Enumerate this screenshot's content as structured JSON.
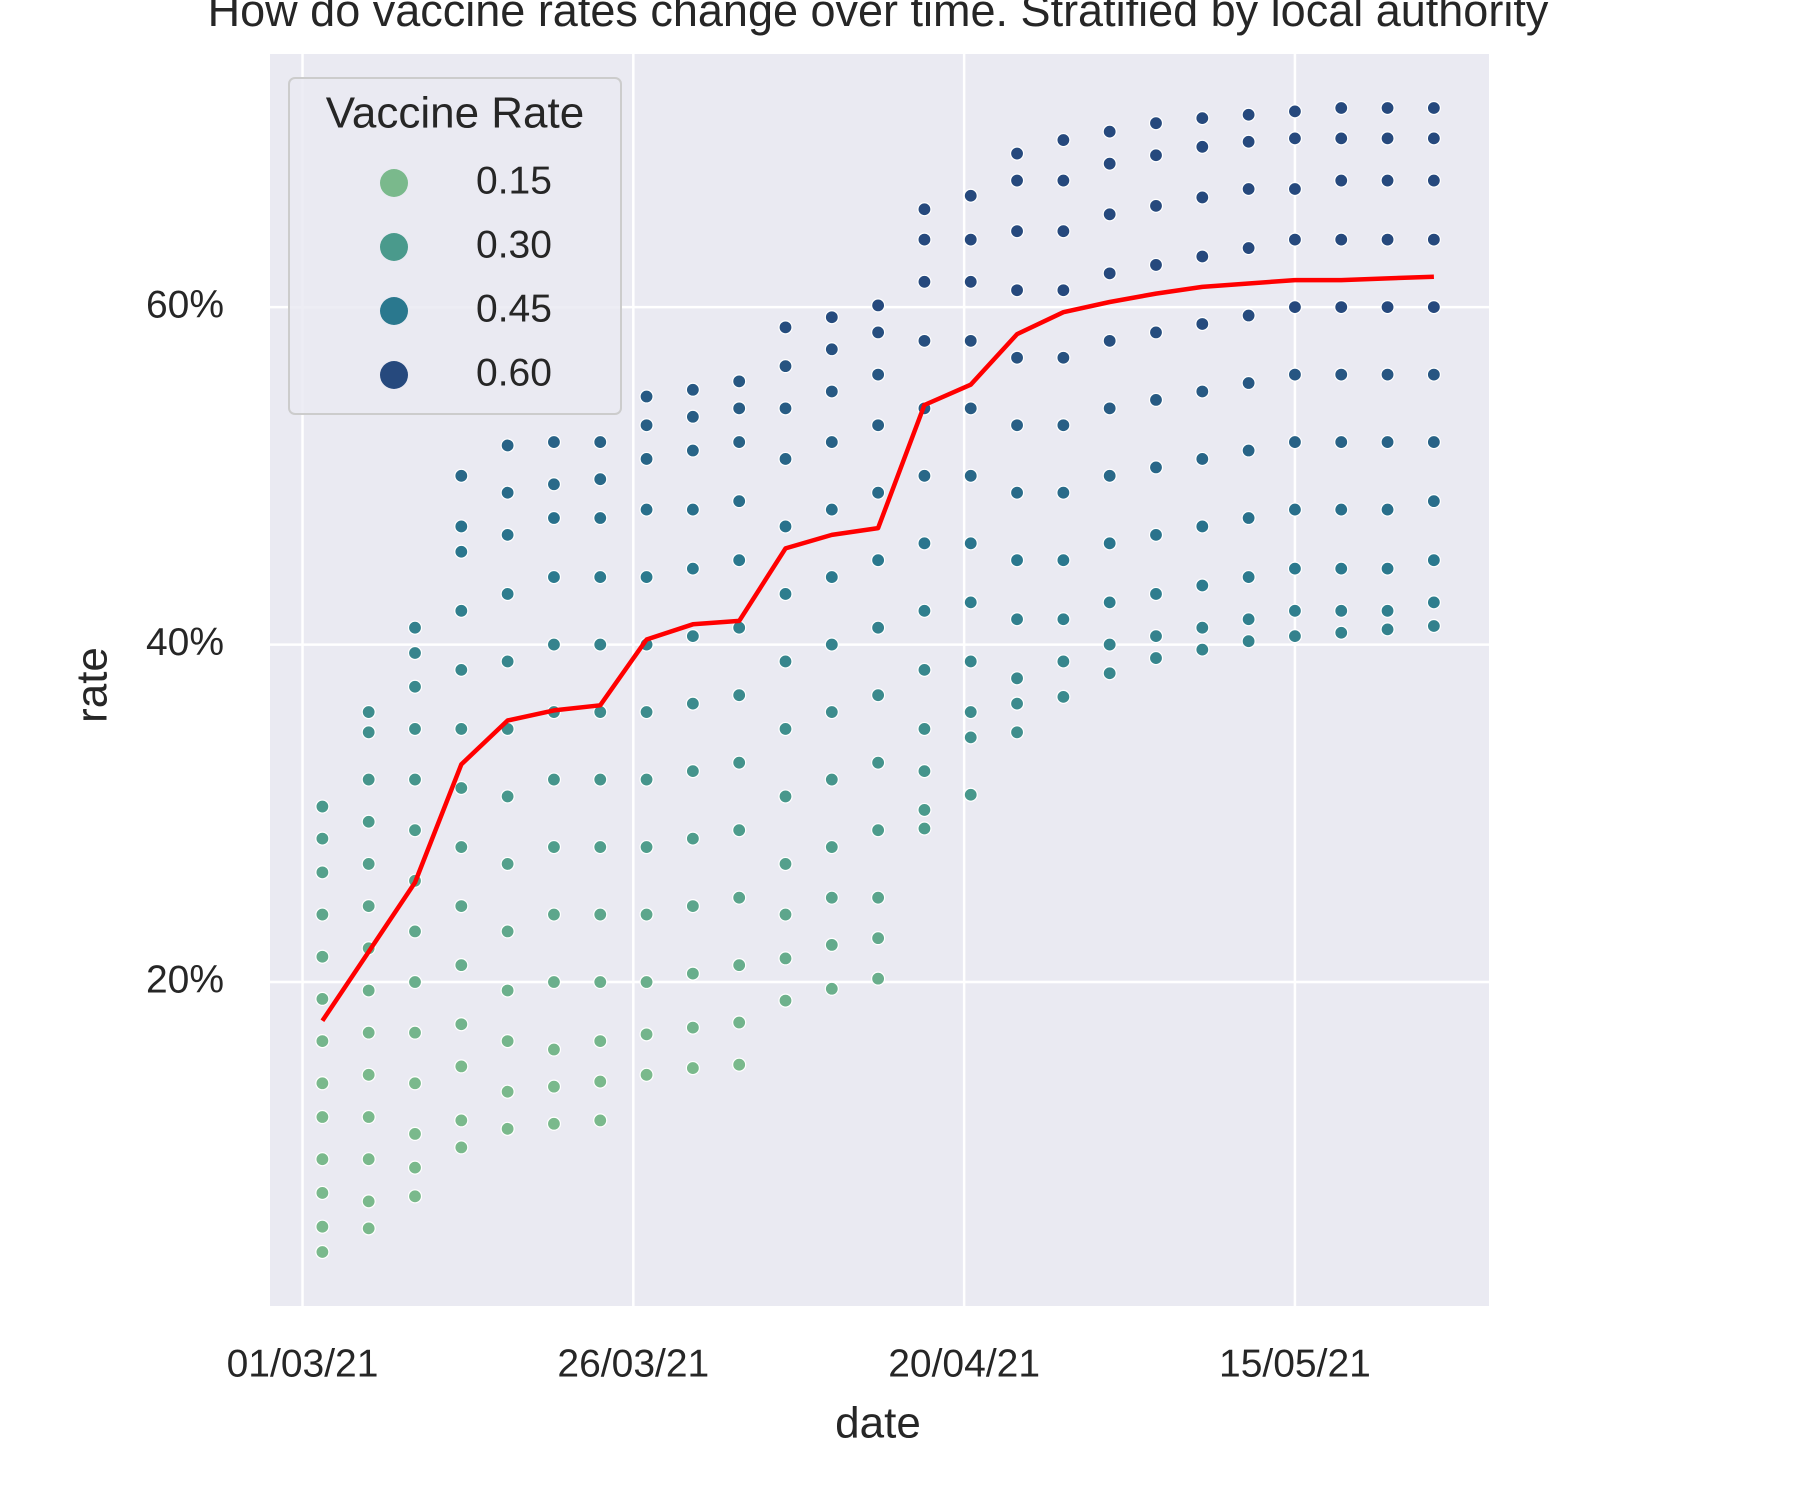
{
  "chart_data": {
    "type": "scatter",
    "title": "How do vaccine rates change over time. Stratified by local authority",
    "x_label": "date",
    "y_label": "rate",
    "x": [
      "2021-03-02T12:00",
      "2021-03-06T00:00",
      "2021-03-09T12:00",
      "2021-03-13T00:00",
      "2021-03-16T12:00",
      "2021-03-20T00:00",
      "2021-03-23T12:00",
      "2021-03-27T00:00",
      "2021-03-30T12:00",
      "2021-04-03T00:00",
      "2021-04-06T12:00",
      "2021-04-10T00:00",
      "2021-04-13T12:00",
      "2021-04-17T00:00",
      "2021-04-20T12:00",
      "2021-04-24T00:00",
      "2021-04-27T12:00",
      "2021-05-01T00:00",
      "2021-05-04T12:00",
      "2021-05-08T00:00",
      "2021-05-11T12:00",
      "2021-05-15T00:00",
      "2021-05-18T12:00",
      "2021-05-22T00:00",
      "2021-05-25T12:00"
    ],
    "points": [
      [
        4.0,
        5.5,
        7.5,
        9.5,
        12,
        14,
        16.5,
        19,
        21.5,
        24,
        26.5,
        28.5,
        30.4
      ],
      [
        5.4,
        7,
        9.5,
        12,
        14.5,
        17,
        19.5,
        22,
        24.5,
        27,
        29.5,
        32,
        34.8,
        36.0
      ],
      [
        7.3,
        9,
        11,
        14,
        17,
        20,
        23,
        26,
        29,
        32,
        35,
        37.5,
        39.5,
        41.0
      ],
      [
        10.2,
        11.8,
        15,
        17.5,
        21,
        24.5,
        28,
        31.5,
        35,
        38.5,
        42,
        45.5,
        47,
        50.0
      ],
      [
        11.3,
        13.5,
        16.5,
        19.5,
        23,
        27,
        31,
        35,
        39,
        43,
        46.5,
        49,
        51.8
      ],
      [
        11.6,
        13.8,
        16,
        20,
        24,
        28,
        32,
        36,
        40,
        44,
        47.5,
        49.5,
        52.0
      ],
      [
        11.8,
        14.1,
        16.5,
        20,
        24,
        28,
        32,
        36,
        40,
        44,
        47.5,
        49.8,
        52.0
      ],
      [
        14.5,
        16.9,
        20,
        24,
        28,
        32,
        36,
        40,
        44,
        48,
        51,
        53,
        54.7
      ],
      [
        14.9,
        17.3,
        20.5,
        24.5,
        28.5,
        32.5,
        36.5,
        40.5,
        44.5,
        48,
        51.5,
        53.5,
        55.1
      ],
      [
        15.1,
        17.6,
        21,
        25,
        29,
        33,
        37,
        41,
        45,
        48.5,
        52,
        54,
        55.6
      ],
      [
        18.9,
        21.4,
        24,
        27,
        31,
        35,
        39,
        43,
        47,
        51,
        54,
        56.5,
        58.8
      ],
      [
        19.6,
        22.2,
        25,
        28,
        32,
        36,
        40,
        44,
        48,
        52,
        55,
        57.5,
        59.4
      ],
      [
        20.2,
        22.6,
        25,
        29,
        33,
        37,
        41,
        45,
        49,
        53,
        56,
        58.5,
        60.1
      ],
      [
        29.1,
        30.2,
        32.5,
        35,
        38.5,
        42,
        46,
        50,
        54,
        58,
        61.5,
        64,
        65.8
      ],
      [
        31.1,
        34.5,
        36,
        39,
        42.5,
        46,
        50,
        54,
        58,
        61.5,
        64,
        66.6
      ],
      [
        34.8,
        36.5,
        38,
        41.5,
        45,
        49,
        53,
        57,
        61,
        64.5,
        67.5,
        69.1
      ],
      [
        36.9,
        39,
        41.5,
        45,
        49,
        53,
        57,
        61,
        64.5,
        67.5,
        69.9
      ],
      [
        38.3,
        40,
        42.5,
        46,
        50,
        54,
        58,
        62,
        65.5,
        68.5,
        70.4
      ],
      [
        39.2,
        40.5,
        43,
        46.5,
        50.5,
        54.5,
        58.5,
        62.5,
        66,
        69,
        70.9
      ],
      [
        39.7,
        41,
        43.5,
        47,
        51,
        55,
        59,
        63,
        66.5,
        69.5,
        71.2
      ],
      [
        40.2,
        41.5,
        44,
        47.5,
        51.5,
        55.5,
        59.5,
        63.5,
        67,
        69.8,
        71.4
      ],
      [
        40.5,
        42,
        44.5,
        48,
        52,
        56,
        60,
        64,
        67,
        70,
        71.6
      ],
      [
        40.7,
        42,
        44.5,
        48,
        52,
        56,
        60,
        64,
        67.5,
        70,
        71.8
      ],
      [
        40.9,
        42,
        44.5,
        48,
        52,
        56,
        60,
        64,
        67.5,
        70,
        71.8
      ],
      [
        41.1,
        42.5,
        45,
        48.5,
        52,
        56,
        60,
        64,
        67.5,
        70,
        71.8
      ]
    ],
    "mean": {
      "color": "#ff0000",
      "values": [
        17.7,
        21.8,
        25.9,
        32.9,
        35.5,
        36.1,
        36.4,
        40.3,
        41.2,
        41.4,
        45.7,
        46.5,
        46.9,
        54.2,
        55.4,
        58.4,
        59.7,
        60.3,
        60.8,
        61.2,
        61.4,
        61.6,
        61.6,
        61.7,
        61.8
      ]
    },
    "legend": {
      "title": "Vaccine Rate",
      "corner": "upper left",
      "entries": [
        {
          "label": 0.15,
          "color": "#7ab98c"
        },
        {
          "label": {
            "value": 0.3,
            "label": "0.30"
          },
          "color": "#4a9a8c"
        },
        {
          "label": {
            "value": 0.45,
            "label": "0.45"
          },
          "color": "#2a788e"
        },
        {
          "label": {
            "value": 0.6,
            "label": "0.60"
          },
          "color": "#26497d"
        }
      ]
    },
    "xlim": [
      "2021-02-26T13:00",
      "2021-05-29T16:00"
    ],
    "xticks": [
      {
        "value": "2021-03-01T00:00",
        "label": "01/03/21"
      },
      {
        "value": "2021-03-26T00:00",
        "label": "26/03/21"
      },
      {
        "value": "2021-04-20T00:00",
        "label": "20/04/21"
      },
      {
        "value": "2021-05-15T00:00",
        "label": "15/05/21"
      }
    ],
    "ylim": [
      0.8,
      75
    ],
    "yticks": [
      {
        "value": 20,
        "label": "20%"
      },
      {
        "value": 40,
        "label": "40%"
      },
      {
        "value": 60,
        "label": "60%"
      }
    ],
    "grid": true
  }
}
